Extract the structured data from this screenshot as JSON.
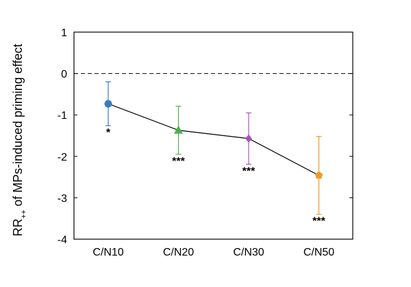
{
  "chart_data": {
    "type": "line",
    "ylabel_main": "RR",
    "ylabel_sub": "++",
    "ylabel_rest": "of MPs-induced priming effect",
    "categories": [
      "C/N10",
      "C/N20",
      "C/N30",
      "C/N50"
    ],
    "values": [
      -0.73,
      -1.37,
      -1.57,
      -2.46
    ],
    "errors": [
      0.53,
      0.58,
      0.62,
      0.94
    ],
    "colors": [
      "#3a7bbf",
      "#4fae4f",
      "#a855b5",
      "#f39a1e"
    ],
    "markers": [
      "circle",
      "triangle",
      "diamond",
      "pentagon"
    ],
    "annotations": [
      "*",
      "***",
      "***",
      "***"
    ],
    "line_color": "#000000",
    "reference_line": 0,
    "ylim": [
      -4,
      1
    ],
    "yticks": [
      -4,
      -3,
      -2,
      -1,
      0,
      1
    ]
  }
}
